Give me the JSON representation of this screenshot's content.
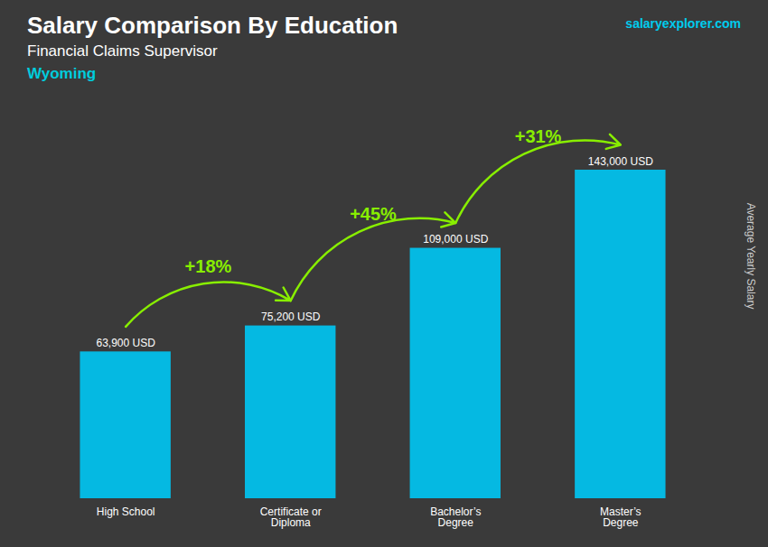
{
  "chart_data": {
    "type": "bar",
    "title": "Salary Comparison By Education",
    "subtitle": "Financial Claims Supervisor",
    "ylabel": "Average Yearly Salary",
    "categories": [
      "High School",
      "Certificate or\nDiploma",
      "Bachelor’s\nDegree",
      "Master’s\nDegree"
    ],
    "values": [
      63900,
      75200,
      109000,
      143000
    ],
    "value_labels": [
      "63,900 USD",
      "75,200 USD",
      "109,000 USD",
      "143,000 USD"
    ],
    "data_labels": true,
    "color": "#00C8F5",
    "ylim": [
      0,
      165000
    ],
    "tick_labels": "x",
    "annotations": [
      {
        "text": "Wyoming"
      },
      {
        "text": "salaryexplorer.com"
      },
      {
        "text": "+18%",
        "from": 0,
        "to": 1,
        "color": "#88EE00"
      },
      {
        "text": "+45%",
        "from": 1,
        "to": 2,
        "color": "#88EE00"
      },
      {
        "text": "+31%",
        "from": 2,
        "to": 3,
        "color": "#88EE00"
      }
    ]
  }
}
